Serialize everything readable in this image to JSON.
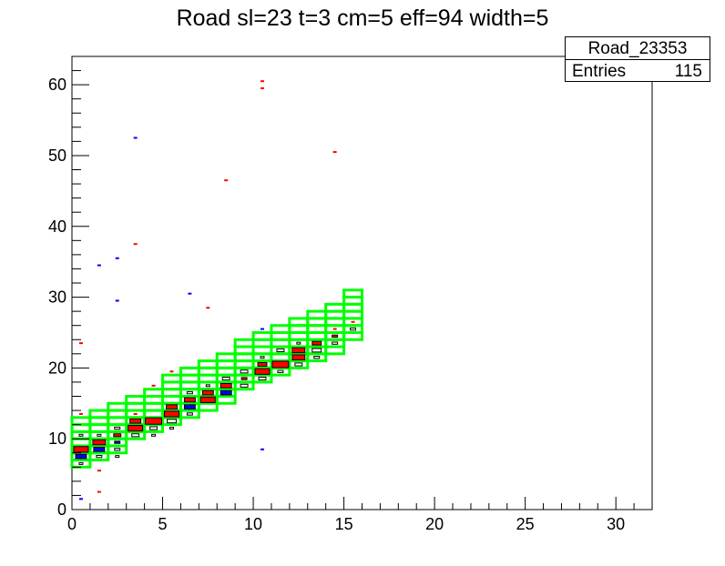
{
  "title": "Road sl=23 t=3 cm=5 eff=94 width=5",
  "stats": {
    "name": "Road_23353",
    "entries_label": "Entries",
    "entries_value": "115"
  },
  "colors": {
    "road": "#00ff00",
    "red_marker": "#ff0000",
    "blue_marker": "#0000ff",
    "black_marker": "#000000"
  },
  "chart_data": {
    "type": "heatmap",
    "title": "Road sl=23 t=3 cm=5 eff=94 width=5",
    "xlim": [
      0,
      32
    ],
    "ylim": [
      0,
      64
    ],
    "x_ticks": [
      0,
      5,
      10,
      15,
      20,
      25,
      30
    ],
    "y_ticks": [
      0,
      10,
      20,
      30,
      40,
      50,
      60
    ],
    "grid": false,
    "road_boxes": [
      {
        "x": 0,
        "y": 6
      },
      {
        "x": 0,
        "y": 7
      },
      {
        "x": 0,
        "y": 8
      },
      {
        "x": 0,
        "y": 9
      },
      {
        "x": 0,
        "y": 10
      },
      {
        "x": 0,
        "y": 11
      },
      {
        "x": 0,
        "y": 12
      },
      {
        "x": 1,
        "y": 7
      },
      {
        "x": 1,
        "y": 8
      },
      {
        "x": 1,
        "y": 9
      },
      {
        "x": 1,
        "y": 10
      },
      {
        "x": 1,
        "y": 11
      },
      {
        "x": 1,
        "y": 12
      },
      {
        "x": 1,
        "y": 13
      },
      {
        "x": 2,
        "y": 8
      },
      {
        "x": 2,
        "y": 9
      },
      {
        "x": 2,
        "y": 10
      },
      {
        "x": 2,
        "y": 11
      },
      {
        "x": 2,
        "y": 12
      },
      {
        "x": 2,
        "y": 13
      },
      {
        "x": 2,
        "y": 14
      },
      {
        "x": 3,
        "y": 10
      },
      {
        "x": 3,
        "y": 11
      },
      {
        "x": 3,
        "y": 12
      },
      {
        "x": 3,
        "y": 13
      },
      {
        "x": 3,
        "y": 14
      },
      {
        "x": 3,
        "y": 15
      },
      {
        "x": 4,
        "y": 11
      },
      {
        "x": 4,
        "y": 12
      },
      {
        "x": 4,
        "y": 13
      },
      {
        "x": 4,
        "y": 14
      },
      {
        "x": 4,
        "y": 15
      },
      {
        "x": 4,
        "y": 16
      },
      {
        "x": 5,
        "y": 12
      },
      {
        "x": 5,
        "y": 13
      },
      {
        "x": 5,
        "y": 14
      },
      {
        "x": 5,
        "y": 15
      },
      {
        "x": 5,
        "y": 16
      },
      {
        "x": 5,
        "y": 17
      },
      {
        "x": 5,
        "y": 18
      },
      {
        "x": 6,
        "y": 13
      },
      {
        "x": 6,
        "y": 14
      },
      {
        "x": 6,
        "y": 15
      },
      {
        "x": 6,
        "y": 16
      },
      {
        "x": 6,
        "y": 17
      },
      {
        "x": 6,
        "y": 18
      },
      {
        "x": 6,
        "y": 19
      },
      {
        "x": 7,
        "y": 14
      },
      {
        "x": 7,
        "y": 15
      },
      {
        "x": 7,
        "y": 16
      },
      {
        "x": 7,
        "y": 17
      },
      {
        "x": 7,
        "y": 18
      },
      {
        "x": 7,
        "y": 19
      },
      {
        "x": 7,
        "y": 20
      },
      {
        "x": 8,
        "y": 15
      },
      {
        "x": 8,
        "y": 16
      },
      {
        "x": 8,
        "y": 17
      },
      {
        "x": 8,
        "y": 18
      },
      {
        "x": 8,
        "y": 19
      },
      {
        "x": 8,
        "y": 20
      },
      {
        "x": 8,
        "y": 21
      },
      {
        "x": 9,
        "y": 17
      },
      {
        "x": 9,
        "y": 18
      },
      {
        "x": 9,
        "y": 19
      },
      {
        "x": 9,
        "y": 20
      },
      {
        "x": 9,
        "y": 21
      },
      {
        "x": 9,
        "y": 22
      },
      {
        "x": 9,
        "y": 23
      },
      {
        "x": 10,
        "y": 18
      },
      {
        "x": 10,
        "y": 19
      },
      {
        "x": 10,
        "y": 20
      },
      {
        "x": 10,
        "y": 21
      },
      {
        "x": 10,
        "y": 22
      },
      {
        "x": 10,
        "y": 23
      },
      {
        "x": 10,
        "y": 24
      },
      {
        "x": 11,
        "y": 19
      },
      {
        "x": 11,
        "y": 20
      },
      {
        "x": 11,
        "y": 21
      },
      {
        "x": 11,
        "y": 22
      },
      {
        "x": 11,
        "y": 23
      },
      {
        "x": 11,
        "y": 24
      },
      {
        "x": 11,
        "y": 25
      },
      {
        "x": 12,
        "y": 20
      },
      {
        "x": 12,
        "y": 21
      },
      {
        "x": 12,
        "y": 22
      },
      {
        "x": 12,
        "y": 23
      },
      {
        "x": 12,
        "y": 24
      },
      {
        "x": 12,
        "y": 25
      },
      {
        "x": 12,
        "y": 26
      },
      {
        "x": 13,
        "y": 21
      },
      {
        "x": 13,
        "y": 22
      },
      {
        "x": 13,
        "y": 23
      },
      {
        "x": 13,
        "y": 24
      },
      {
        "x": 13,
        "y": 25
      },
      {
        "x": 13,
        "y": 26
      },
      {
        "x": 13,
        "y": 27
      },
      {
        "x": 14,
        "y": 22
      },
      {
        "x": 14,
        "y": 23
      },
      {
        "x": 14,
        "y": 24
      },
      {
        "x": 14,
        "y": 25
      },
      {
        "x": 14,
        "y": 26
      },
      {
        "x": 14,
        "y": 27
      },
      {
        "x": 14,
        "y": 28
      },
      {
        "x": 15,
        "y": 24
      },
      {
        "x": 15,
        "y": 25
      },
      {
        "x": 15,
        "y": 26
      },
      {
        "x": 15,
        "y": 27
      },
      {
        "x": 15,
        "y": 28
      },
      {
        "x": 15,
        "y": 29
      },
      {
        "x": 15,
        "y": 30
      }
    ],
    "red_bins": [
      {
        "x": 0,
        "y": 8,
        "w": 0.8
      },
      {
        "x": 1,
        "y": 9,
        "w": 0.7
      },
      {
        "x": 2,
        "y": 10,
        "w": 0.4
      },
      {
        "x": 3,
        "y": 11,
        "w": 0.8
      },
      {
        "x": 3,
        "y": 12,
        "w": 0.6
      },
      {
        "x": 4,
        "y": 12,
        "w": 0.9
      },
      {
        "x": 5,
        "y": 13,
        "w": 0.8
      },
      {
        "x": 5,
        "y": 14,
        "w": 0.6
      },
      {
        "x": 6,
        "y": 15,
        "w": 0.6
      },
      {
        "x": 7,
        "y": 15,
        "w": 0.8
      },
      {
        "x": 7,
        "y": 16,
        "w": 0.6
      },
      {
        "x": 8,
        "y": 17,
        "w": 0.6
      },
      {
        "x": 9,
        "y": 18,
        "w": 0.3
      },
      {
        "x": 10,
        "y": 19,
        "w": 0.8
      },
      {
        "x": 10,
        "y": 20,
        "w": 0.5
      },
      {
        "x": 11,
        "y": 20,
        "w": 0.9
      },
      {
        "x": 12,
        "y": 21,
        "w": 0.7
      },
      {
        "x": 12,
        "y": 22,
        "w": 0.7
      },
      {
        "x": 13,
        "y": 23,
        "w": 0.5
      },
      {
        "x": 14,
        "y": 24,
        "w": 0.3
      },
      {
        "x": 0,
        "y": 13,
        "w": 0.2
      },
      {
        "x": 0,
        "y": 23,
        "w": 0.2
      },
      {
        "x": 1,
        "y": 5,
        "w": 0.2
      },
      {
        "x": 1,
        "y": 2,
        "w": 0.2
      },
      {
        "x": 3,
        "y": 37,
        "w": 0.2
      },
      {
        "x": 5,
        "y": 19,
        "w": 0.2
      },
      {
        "x": 7,
        "y": 28,
        "w": 0.2
      },
      {
        "x": 8,
        "y": 46,
        "w": 0.2
      },
      {
        "x": 10,
        "y": 59,
        "w": 0.2
      },
      {
        "x": 10,
        "y": 60,
        "w": 0.2
      },
      {
        "x": 14,
        "y": 50,
        "w": 0.2
      },
      {
        "x": 14,
        "y": 25,
        "w": 0.2
      },
      {
        "x": 15,
        "y": 26,
        "w": 0.2
      },
      {
        "x": 4,
        "y": 17,
        "w": 0.2
      },
      {
        "x": 3,
        "y": 13,
        "w": 0.2
      }
    ],
    "blue_bins": [
      {
        "x": 0,
        "y": 7,
        "w": 0.6
      },
      {
        "x": 1,
        "y": 8,
        "w": 0.6
      },
      {
        "x": 2,
        "y": 9,
        "w": 0.3
      },
      {
        "x": 6,
        "y": 14,
        "w": 0.6
      },
      {
        "x": 8,
        "y": 16,
        "w": 0.6
      },
      {
        "x": 0,
        "y": 1,
        "w": 0.2
      },
      {
        "x": 1,
        "y": 34,
        "w": 0.2
      },
      {
        "x": 2,
        "y": 35,
        "w": 0.2
      },
      {
        "x": 2,
        "y": 29,
        "w": 0.2
      },
      {
        "x": 3,
        "y": 52,
        "w": 0.2
      },
      {
        "x": 6,
        "y": 30,
        "w": 0.2
      },
      {
        "x": 10,
        "y": 8,
        "w": 0.2
      },
      {
        "x": 10,
        "y": 25,
        "w": 0.2
      }
    ],
    "black_bins": [
      {
        "x": 0,
        "y": 6,
        "w": 0.2
      },
      {
        "x": 1,
        "y": 7,
        "w": 0.3
      },
      {
        "x": 1,
        "y": 10,
        "w": 0.2
      },
      {
        "x": 2,
        "y": 7,
        "w": 0.2
      },
      {
        "x": 2,
        "y": 8,
        "w": 0.3
      },
      {
        "x": 2,
        "y": 11,
        "w": 0.3
      },
      {
        "x": 3,
        "y": 10,
        "w": 0.4
      },
      {
        "x": 4,
        "y": 10,
        "w": 0.2
      },
      {
        "x": 4,
        "y": 11,
        "w": 0.4
      },
      {
        "x": 5,
        "y": 12,
        "w": 0.5
      },
      {
        "x": 5,
        "y": 11,
        "w": 0.2
      },
      {
        "x": 6,
        "y": 13,
        "w": 0.3
      },
      {
        "x": 6,
        "y": 16,
        "w": 0.3
      },
      {
        "x": 7,
        "y": 17,
        "w": 0.2
      },
      {
        "x": 8,
        "y": 18,
        "w": 0.4
      },
      {
        "x": 9,
        "y": 17,
        "w": 0.4
      },
      {
        "x": 9,
        "y": 19,
        "w": 0.4
      },
      {
        "x": 10,
        "y": 18,
        "w": 0.4
      },
      {
        "x": 10,
        "y": 21,
        "w": 0.2
      },
      {
        "x": 11,
        "y": 19,
        "w": 0.3
      },
      {
        "x": 11,
        "y": 22,
        "w": 0.4
      },
      {
        "x": 12,
        "y": 20,
        "w": 0.4
      },
      {
        "x": 13,
        "y": 21,
        "w": 0.3
      },
      {
        "x": 13,
        "y": 22,
        "w": 0.5
      },
      {
        "x": 14,
        "y": 23,
        "w": 0.3
      },
      {
        "x": 15,
        "y": 25,
        "w": 0.3
      },
      {
        "x": 12,
        "y": 23,
        "w": 0.2
      },
      {
        "x": 0,
        "y": 10,
        "w": 0.2
      }
    ]
  }
}
